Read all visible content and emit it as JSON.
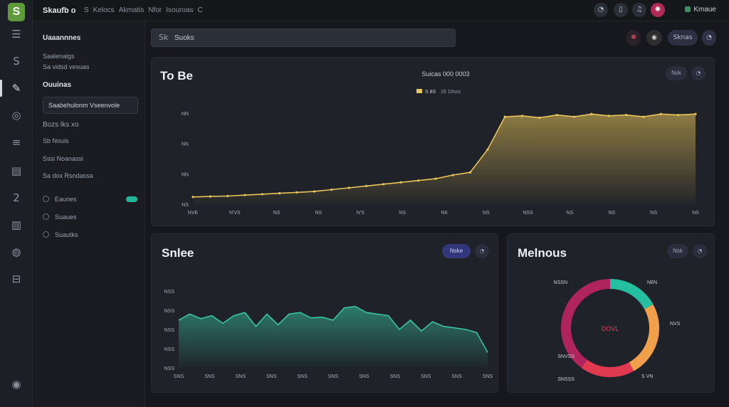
{
  "app": {
    "logo_letter": "S",
    "brand": "Skaufb o",
    "breadcrumbs": [
      "S",
      "Kelocs",
      "Akmatis",
      "Nfor",
      "Isouroas",
      "C"
    ]
  },
  "topbar": {
    "icons": [
      "clock-icon",
      "bookmark-icon",
      "bell-icon",
      "alert-icon"
    ],
    "icon_glyphs": [
      "◔",
      "▯",
      "♫",
      "✺"
    ],
    "user_label": "Kmaue"
  },
  "rail": {
    "glyphs": [
      "☰",
      "S",
      "✎",
      "◎",
      "≡",
      "▤",
      "2",
      "▥",
      "◍",
      "⊟",
      "◉"
    ]
  },
  "sidebar": {
    "title": "Uaaannnes",
    "items": [
      {
        "label": "Saalenalgs"
      },
      {
        "label": "Sa vidsd vesuas"
      },
      {
        "label": "Ouuinas"
      },
      {
        "label": "Saabehulonm Vseenvole"
      },
      {
        "label": "Bozs lks xo"
      },
      {
        "label": "Sb Nouis"
      },
      {
        "label": "Sssi Noanassi"
      },
      {
        "label": "Sa dox Rsndassa"
      },
      {
        "label": "Eaunes"
      },
      {
        "label": "Suaues"
      },
      {
        "label": "Suautks"
      }
    ]
  },
  "search": {
    "icon": "Sk",
    "placeholder": "Suoks"
  },
  "header_actions": {
    "glyph_a": "✽",
    "glyph_b": "◉",
    "pill": "Sknas",
    "round": "◔"
  },
  "top_chart": {
    "title": "To Be",
    "subtitle": "Suicas 000 0003",
    "legend_left": "S 8S",
    "legend_right": "16 10sss",
    "btn_pill": "Nsk",
    "btn_round": "◔",
    "color": "#e8c45a"
  },
  "sales_chart": {
    "title": "Snlee",
    "btn_pill": "Nske",
    "btn_round": "◔",
    "color": "#38c4a3"
  },
  "donut_chart": {
    "title": "Melnous",
    "center_label": "DOVL",
    "btn_pill": "Nsk",
    "btn_round": "◔"
  },
  "chart_data": [
    {
      "type": "area",
      "title": "To Be",
      "subtitle": "Suicas 000 0003",
      "x_ticks": [
        "NVE",
        "N'VS",
        "NS",
        "NS",
        "N'S",
        "NS",
        "N6",
        "NS",
        "NSS",
        "NS",
        "NS",
        "NS",
        "NS"
      ],
      "y_ticks": [
        "NN",
        "NN",
        "NN",
        "NS"
      ],
      "ylim": [
        0,
        100
      ],
      "series": [
        {
          "values": [
            8,
            8.5,
            9,
            10,
            11,
            12,
            13,
            14,
            16,
            18,
            20,
            22,
            24,
            26,
            28,
            32,
            35,
            60,
            96,
            97,
            95,
            98,
            96,
            99,
            97,
            98,
            96,
            99,
            98,
            99
          ]
        }
      ]
    },
    {
      "type": "area",
      "title": "Snlee",
      "x_ticks": [
        "SNS",
        "SNS",
        "SNS",
        "SNS",
        "SNS",
        "SNS",
        "SNS",
        "SNS",
        "SNS",
        "SNS",
        "SNS"
      ],
      "y_ticks": [
        "NSS",
        "NSS",
        "NSS",
        "NSS",
        "NSS"
      ],
      "ylim": [
        0,
        100
      ],
      "series": [
        {
          "values": [
            62,
            70,
            64,
            68,
            58,
            68,
            72,
            54,
            70,
            56,
            70,
            72,
            65,
            66,
            62,
            78,
            80,
            72,
            70,
            68,
            50,
            62,
            48,
            60,
            54,
            52,
            50,
            46,
            20
          ]
        }
      ]
    },
    {
      "type": "pie",
      "title": "Melnous",
      "center_label": "DOVL",
      "slices": [
        {
          "label": "N6N",
          "value": 17,
          "color": "#24bfa0"
        },
        {
          "label": "NVS",
          "value": 25,
          "color": "#f0a04a"
        },
        {
          "label": "SVN",
          "value": 18,
          "color": "#e03a50"
        },
        {
          "label": "SNVSS",
          "value": 40,
          "color": "#b0245e"
        }
      ],
      "outer_labels": [
        "NSSN",
        "N6N",
        "NVS",
        "S VN",
        "SNVSS",
        "SNSSS"
      ]
    }
  ]
}
